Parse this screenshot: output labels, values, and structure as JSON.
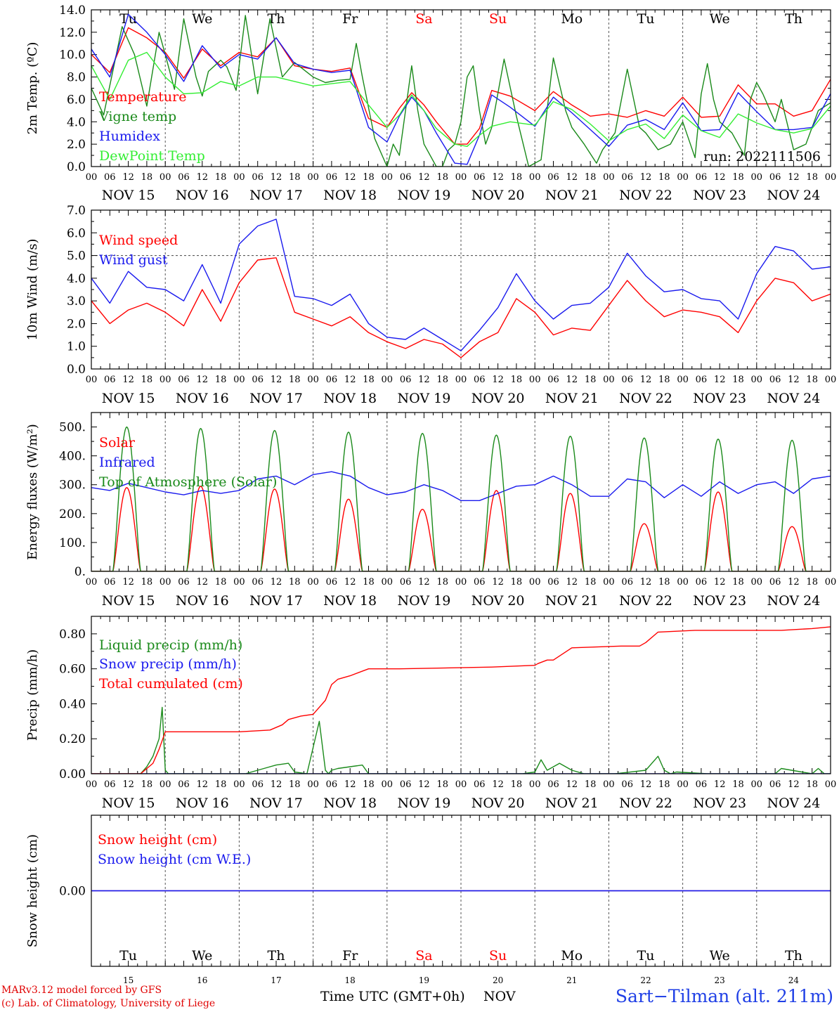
{
  "days": [
    {
      "abbr": "Tu",
      "label": "NOV 15",
      "num": "15",
      "weekend": false
    },
    {
      "abbr": "We",
      "label": "NOV 16",
      "num": "16",
      "weekend": false
    },
    {
      "abbr": "Th",
      "label": "NOV 17",
      "num": "17",
      "weekend": false
    },
    {
      "abbr": "Fr",
      "label": "NOV 18",
      "num": "18",
      "weekend": false
    },
    {
      "abbr": "Sa",
      "label": "NOV 19",
      "num": "19",
      "weekend": true
    },
    {
      "abbr": "Su",
      "label": "NOV 20",
      "num": "20",
      "weekend": true
    },
    {
      "abbr": "Mo",
      "label": "NOV 21",
      "num": "21",
      "weekend": false
    },
    {
      "abbr": "Tu",
      "label": "NOV 22",
      "num": "22",
      "weekend": false
    },
    {
      "abbr": "We",
      "label": "NOV 23",
      "num": "23",
      "weekend": false
    },
    {
      "abbr": "Th",
      "label": "NOV 24",
      "num": "24",
      "weekend": false
    }
  ],
  "hour_ticks": [
    "00",
    "06",
    "12",
    "18"
  ],
  "hour_tick_end": "00",
  "colors": {
    "red": "#ff0000",
    "darkgreen": "#1a8a1a",
    "blue": "#1a1aee",
    "lightgreen": "#33ee33",
    "purple": "#7a2a9a",
    "weekend": "#ff0000"
  },
  "footer": {
    "model": "MARv3.12 model forced by GFS",
    "lab": "(c) Lab. of Climatology, University of Liege",
    "xlabel": "Time UTC (GMT+0h)",
    "month": "NOV",
    "station": "Sart−Tilman (alt. 211m)"
  },
  "chart_data": [
    {
      "id": "temp",
      "type": "line",
      "ylabel": "2m Temp. (ºC)",
      "ylim": [
        0,
        14
      ],
      "yticks": [
        "0.0",
        "2.0",
        "4.0",
        "6.0",
        "8.0",
        "10.0",
        "12.0",
        "14.0"
      ],
      "annotation": "run: 2022111506",
      "x_unit": "hours since NOV 15 00 UTC",
      "series": [
        {
          "name": "Temperature",
          "color": "#ff0000",
          "x": [
            0,
            6,
            12,
            18,
            24,
            30,
            36,
            42,
            48,
            54,
            60,
            66,
            72,
            78,
            84,
            90,
            96,
            100,
            104,
            108,
            112,
            118,
            122,
            126,
            130,
            136,
            144,
            150,
            156,
            162,
            168,
            174,
            180,
            186,
            192,
            198,
            204,
            210,
            216,
            222,
            228,
            234,
            240
          ],
          "y": [
            10,
            8.4,
            12.4,
            11.5,
            10.2,
            7.9,
            10.5,
            9,
            10.2,
            9.8,
            11.5,
            9,
            8.7,
            8.5,
            8.8,
            4.3,
            3.5,
            5.2,
            6.6,
            5.5,
            4,
            2,
            2,
            3.4,
            6.8,
            6.3,
            5,
            6.7,
            5.5,
            4.5,
            4.7,
            4.4,
            5,
            4.5,
            6.2,
            4.4,
            4.5,
            7.3,
            5.6,
            5.6,
            4.5,
            5,
            7.8
          ]
        },
        {
          "name": "Vigne temp",
          "color": "#1a8a1a",
          "x": [
            0,
            4,
            10,
            14,
            18,
            22,
            24,
            27,
            30,
            34,
            36,
            38,
            42,
            44,
            47,
            50,
            54,
            58,
            62,
            66,
            72,
            76,
            80,
            84,
            86,
            88,
            92,
            96,
            98,
            100,
            104,
            106,
            108,
            112,
            114,
            116,
            118,
            120,
            122,
            124,
            126,
            128,
            130,
            134,
            138,
            142,
            146,
            150,
            154,
            156,
            160,
            164,
            166,
            170,
            174,
            178,
            180,
            184,
            188,
            192,
            196,
            198,
            200,
            202,
            204,
            208,
            210,
            212,
            214,
            216,
            218,
            222,
            224,
            228,
            232,
            236,
            240
          ],
          "y": [
            7,
            4.6,
            12.5,
            10,
            5.4,
            12,
            10,
            6.9,
            13.2,
            8,
            6.3,
            8.5,
            9.5,
            8.9,
            6.8,
            13.5,
            6.5,
            13.2,
            8,
            9.3,
            8,
            7.5,
            7.7,
            7.8,
            11,
            8,
            2.5,
            0,
            2,
            1,
            9,
            5,
            2,
            0,
            0,
            1.5,
            2,
            4,
            8,
            9,
            5,
            2,
            3.5,
            9.6,
            4.5,
            0,
            0.6,
            9.7,
            5,
            3.5,
            2,
            0.3,
            1.5,
            3,
            8.7,
            3.5,
            3,
            1.5,
            2,
            4,
            0.8,
            6.5,
            9.2,
            6,
            4,
            3,
            2,
            1,
            6,
            7.5,
            6.5,
            4,
            6,
            1.5,
            2,
            5,
            5.7
          ]
        },
        {
          "name": "Humidex",
          "color": "#1a1aee",
          "x": [
            0,
            6,
            12,
            18,
            24,
            30,
            36,
            42,
            48,
            54,
            60,
            66,
            72,
            78,
            84,
            90,
            96,
            100,
            104,
            108,
            112,
            118,
            122,
            126,
            130,
            136,
            144,
            150,
            156,
            162,
            168,
            174,
            180,
            186,
            192,
            198,
            204,
            210,
            216,
            222,
            228,
            234,
            240
          ],
          "y": [
            10.5,
            8,
            13.6,
            12,
            10,
            7.6,
            10.8,
            8.8,
            10,
            9.6,
            11.5,
            9.2,
            8.7,
            8.4,
            8.6,
            3.5,
            2.2,
            4.5,
            6.2,
            5,
            3,
            0.3,
            0.2,
            2.8,
            6.4,
            5.3,
            3.6,
            6.2,
            4.8,
            3.3,
            1.8,
            3.7,
            4.2,
            3.3,
            5.7,
            3.2,
            3.3,
            6.6,
            4.9,
            3.3,
            3.3,
            3.5,
            6.5
          ]
        },
        {
          "name": "DewPoint Temp",
          "color": "#33ee33",
          "x": [
            0,
            6,
            12,
            18,
            24,
            30,
            36,
            42,
            48,
            54,
            60,
            66,
            72,
            78,
            84,
            90,
            96,
            100,
            104,
            108,
            112,
            118,
            122,
            126,
            130,
            136,
            144,
            150,
            156,
            162,
            168,
            174,
            180,
            186,
            192,
            198,
            204,
            210,
            216,
            222,
            228,
            234,
            240
          ],
          "y": [
            9,
            6,
            9.5,
            10.2,
            8,
            6.5,
            6.6,
            7.6,
            7.2,
            8,
            8,
            7.6,
            7.2,
            7.4,
            7.6,
            5.5,
            3.5,
            4.6,
            6.4,
            5,
            3.4,
            2,
            1.8,
            2.8,
            3.6,
            4,
            3.7,
            5.8,
            5.1,
            3.8,
            2.3,
            3.3,
            3.8,
            2.5,
            4.6,
            3.2,
            2.6,
            4.7,
            3.9,
            3.3,
            3,
            3.4,
            5.4
          ]
        }
      ]
    },
    {
      "id": "wind",
      "type": "line",
      "ylabel": "10m Wind (m/s)",
      "ylim": [
        0,
        7
      ],
      "yticks": [
        "0.0",
        "1.0",
        "2.0",
        "3.0",
        "4.0",
        "5.0",
        "6.0",
        "7.0"
      ],
      "hline": 5,
      "x_unit": "hours since NOV 15 00 UTC",
      "series": [
        {
          "name": "Wind speed",
          "color": "#ff0000",
          "x": [
            0,
            6,
            12,
            18,
            24,
            30,
            36,
            42,
            48,
            54,
            60,
            66,
            72,
            78,
            84,
            90,
            96,
            102,
            108,
            114,
            120,
            126,
            132,
            138,
            144,
            150,
            156,
            162,
            168,
            174,
            180,
            186,
            192,
            198,
            204,
            210,
            216,
            222,
            228,
            234,
            240
          ],
          "y": [
            3,
            2,
            2.6,
            2.9,
            2.5,
            1.9,
            3.5,
            2.1,
            3.8,
            4.8,
            4.9,
            2.5,
            2.2,
            1.9,
            2.3,
            1.6,
            1.2,
            0.9,
            1.3,
            1.1,
            0.5,
            1.2,
            1.6,
            3.1,
            2.5,
            1.5,
            1.8,
            1.7,
            2.8,
            3.9,
            3,
            2.3,
            2.6,
            2.5,
            2.3,
            1.6,
            3,
            4,
            3.8,
            3,
            3.3
          ]
        },
        {
          "name": "Wind gust",
          "color": "#1a1aee",
          "x": [
            0,
            6,
            12,
            18,
            24,
            30,
            36,
            42,
            48,
            54,
            60,
            66,
            72,
            78,
            84,
            90,
            96,
            102,
            108,
            114,
            120,
            126,
            132,
            138,
            144,
            150,
            156,
            162,
            168,
            174,
            180,
            186,
            192,
            198,
            204,
            210,
            216,
            222,
            228,
            234,
            240
          ],
          "y": [
            4,
            2.9,
            4.3,
            3.6,
            3.5,
            3,
            4.6,
            2.9,
            5.5,
            6.3,
            6.6,
            3.2,
            3.1,
            2.8,
            3.3,
            2,
            1.4,
            1.3,
            1.8,
            1.3,
            0.8,
            1.7,
            2.7,
            4.2,
            3,
            2.2,
            2.8,
            2.9,
            3.6,
            5.1,
            4.1,
            3.4,
            3.5,
            3.1,
            3,
            2.2,
            4.2,
            5.4,
            5.2,
            4.4,
            4.5
          ]
        }
      ]
    },
    {
      "id": "energy",
      "type": "line",
      "ylabel": "Energy fluxes (W/m²)",
      "ylim": [
        0,
        550
      ],
      "yticks": [
        "0.",
        "100.",
        "200.",
        "300.",
        "400.",
        "500."
      ],
      "x_unit": "hours since NOV 15 00 UTC",
      "diurnal_peak_hour": 11.5,
      "diurnal_halfwidth_h": 4.5,
      "series": [
        {
          "name": "Solar",
          "color": "#ff0000",
          "daily_peaks": [
            290,
            295,
            285,
            250,
            215,
            280,
            270,
            165,
            275,
            155
          ]
        },
        {
          "name": "Infrared",
          "color": "#1a1aee",
          "x": [
            0,
            6,
            12,
            18,
            24,
            30,
            36,
            42,
            48,
            54,
            60,
            66,
            72,
            78,
            84,
            90,
            96,
            102,
            108,
            114,
            120,
            126,
            132,
            138,
            144,
            150,
            156,
            162,
            168,
            174,
            180,
            186,
            192,
            198,
            204,
            210,
            216,
            222,
            228,
            234,
            240
          ],
          "y": [
            290,
            280,
            305,
            290,
            275,
            265,
            280,
            270,
            280,
            320,
            330,
            300,
            335,
            345,
            330,
            290,
            265,
            275,
            300,
            280,
            245,
            245,
            270,
            295,
            300,
            330,
            300,
            260,
            260,
            320,
            310,
            255,
            300,
            260,
            310,
            270,
            300,
            310,
            270,
            320,
            330
          ]
        },
        {
          "name": "Top of Atmosphere (Solar)",
          "color": "#1a8a1a",
          "daily_peaks": [
            500,
            495,
            488,
            482,
            478,
            472,
            468,
            462,
            458,
            454
          ]
        }
      ]
    },
    {
      "id": "precip",
      "type": "line",
      "ylabel": "Precip (mm/h)",
      "ylim": [
        0,
        0.9
      ],
      "yticks": [
        "0.00",
        "0.20",
        "0.40",
        "0.60",
        "0.80"
      ],
      "x_unit": "hours since NOV 15 00 UTC",
      "series": [
        {
          "name": "Liquid precip (mm/h)",
          "color": "#1a8a1a",
          "x": [
            0,
            16,
            18,
            20,
            22,
            23,
            24,
            25,
            30,
            50,
            52,
            56,
            60,
            64,
            66,
            70,
            74,
            76,
            77,
            78,
            80,
            84,
            88,
            90,
            92,
            100,
            120,
            140,
            144,
            146,
            148,
            152,
            156,
            160,
            170,
            180,
            184,
            186,
            188,
            190,
            200,
            222,
            224,
            234,
            236,
            238,
            240
          ],
          "y": [
            0,
            0,
            0.04,
            0.1,
            0.2,
            0.38,
            0.02,
            0,
            0,
            0,
            0.01,
            0.03,
            0.05,
            0.06,
            0.01,
            0,
            0.3,
            0.02,
            0,
            0.02,
            0.03,
            0.04,
            0.05,
            0,
            0,
            0,
            0,
            0,
            0.01,
            0.08,
            0.02,
            0.06,
            0.02,
            0,
            0,
            0.02,
            0.1,
            0.02,
            0,
            0.01,
            0,
            0,
            0.03,
            0,
            0.03,
            0,
            0
          ]
        },
        {
          "name": "Snow precip (mm/h)",
          "color": "#1a1aee",
          "x": [
            0,
            240
          ],
          "y": [
            0,
            0
          ]
        },
        {
          "name": "Total cumulated (cm)",
          "color": "#ff0000",
          "x": [
            0,
            16,
            20,
            22,
            24,
            48,
            58,
            62,
            64,
            68,
            72,
            76,
            78,
            80,
            84,
            90,
            100,
            130,
            144,
            145,
            148,
            150,
            156,
            172,
            178,
            180,
            184,
            196,
            220,
            224,
            234,
            240
          ],
          "y": [
            0,
            0,
            0.06,
            0.14,
            0.24,
            0.24,
            0.25,
            0.28,
            0.31,
            0.33,
            0.34,
            0.42,
            0.51,
            0.54,
            0.56,
            0.6,
            0.6,
            0.61,
            0.62,
            0.63,
            0.65,
            0.65,
            0.72,
            0.73,
            0.73,
            0.75,
            0.81,
            0.82,
            0.82,
            0.82,
            0.83,
            0.84
          ]
        }
      ]
    },
    {
      "id": "snow",
      "type": "line",
      "ylabel": "Snow height (cm)",
      "ylim": [
        -1,
        1
      ],
      "yticks": [
        "0.00"
      ],
      "x_unit": "hours since NOV 15 00 UTC",
      "series": [
        {
          "name": "Snow height (cm)",
          "color": "#ff0000",
          "x": [
            0,
            240
          ],
          "y": [
            0,
            0
          ]
        },
        {
          "name": "Snow height (cm W.E.)",
          "color": "#1a1aee",
          "x": [
            0,
            240
          ],
          "y": [
            0,
            0
          ]
        }
      ]
    }
  ]
}
